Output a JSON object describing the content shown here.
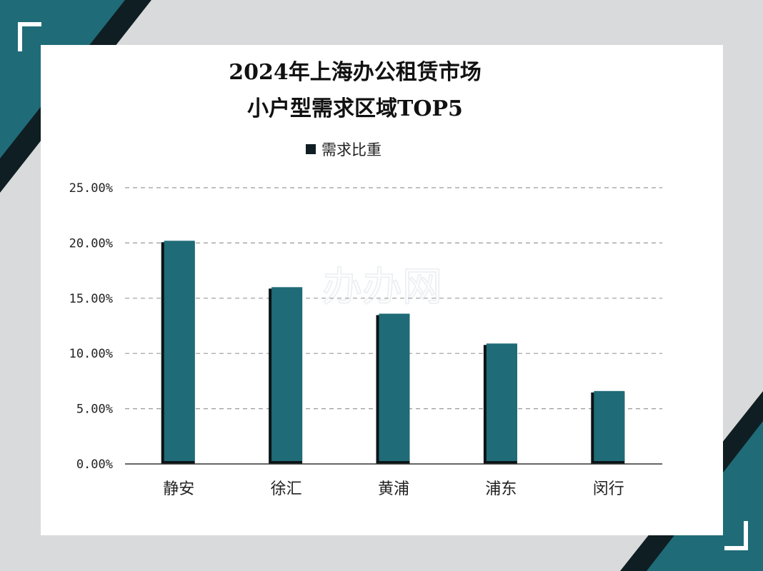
{
  "chart_data": {
    "type": "bar",
    "title": [
      "2024年上海办公租赁市场",
      "小户型需求区域TOP5"
    ],
    "legend": {
      "label": "需求比重",
      "position": "top"
    },
    "categories": [
      "静安",
      "徐汇",
      "黄浦",
      "浦东",
      "闵行"
    ],
    "series": [
      {
        "name": "需求比重",
        "values": [
          20.2,
          16.0,
          13.6,
          10.9,
          6.6
        ]
      }
    ],
    "ylim": [
      0,
      25
    ],
    "yticks": [
      "0.00%",
      "5.00%",
      "10.00%",
      "15.00%",
      "20.00%",
      "25.00%"
    ],
    "ytick_values": [
      0,
      5,
      10,
      15,
      20,
      25
    ],
    "grid": true,
    "colors": {
      "bar": "#1f6b78",
      "bar_shadow": "#0b1416",
      "grid": "#9a9a9a",
      "axis": "#333333"
    }
  },
  "watermark": "办办网",
  "decor": {
    "accent": "#1f6b78",
    "dark": "#0f1e22",
    "bracket": "#ffffff"
  }
}
